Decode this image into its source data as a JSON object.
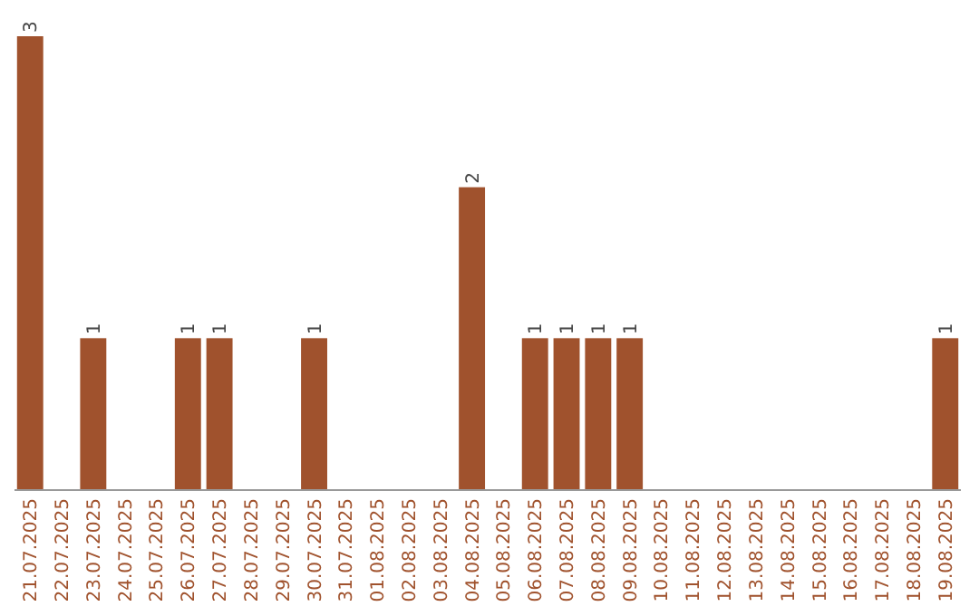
{
  "chart_data": {
    "type": "bar",
    "categories": [
      "21.07.2025",
      "22.07.2025",
      "23.07.2025",
      "24.07.2025",
      "25.07.2025",
      "26.07.2025",
      "27.07.2025",
      "28.07.2025",
      "29.07.2025",
      "30.07.2025",
      "31.07.2025",
      "01.08.2025",
      "02.08.2025",
      "03.08.2025",
      "04.08.2025",
      "05.08.2025",
      "06.08.2025",
      "07.08.2025",
      "08.08.2025",
      "09.08.2025",
      "10.08.2025",
      "11.08.2025",
      "12.08.2025",
      "13.08.2025",
      "14.08.2025",
      "15.08.2025",
      "16.08.2025",
      "17.08.2025",
      "18.08.2025",
      "19.08.2025"
    ],
    "values": [
      3,
      0,
      1,
      0,
      0,
      1,
      1,
      0,
      0,
      1,
      0,
      0,
      0,
      0,
      2,
      0,
      1,
      1,
      1,
      1,
      0,
      0,
      0,
      0,
      0,
      0,
      0,
      0,
      0,
      1
    ],
    "value_labels": [
      "3",
      null,
      "1",
      null,
      null,
      "1",
      "1",
      null,
      null,
      "1",
      null,
      null,
      null,
      null,
      "2",
      null,
      "1",
      "1",
      "1",
      "1",
      null,
      null,
      null,
      null,
      null,
      null,
      null,
      null,
      null,
      "1"
    ],
    "color": "#a0522d"
  }
}
